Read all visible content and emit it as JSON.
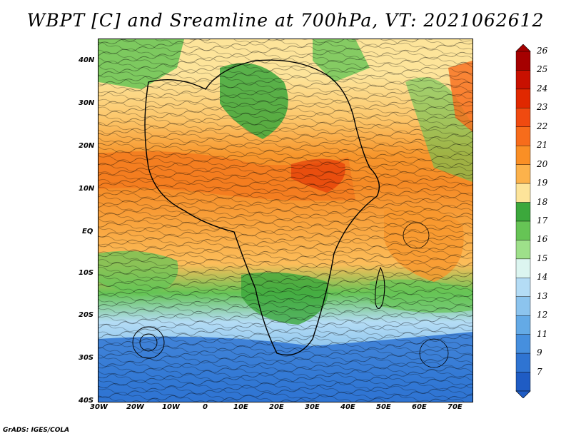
{
  "title": "WBPT [C] and Sreamline at 700hPa, VT: 2021062612",
  "footer": "GrADS: IGES/COLA",
  "map": {
    "lon_labels": [
      "30W",
      "20W",
      "10W",
      "0",
      "10E",
      "20E",
      "30E",
      "40E",
      "50E",
      "60E",
      "70E"
    ],
    "lat_labels": [
      "40N",
      "30N",
      "20N",
      "10N",
      "EQ",
      "10S",
      "20S",
      "30S",
      "40S"
    ]
  },
  "colorbar": {
    "levels": [
      "26",
      "25",
      "24",
      "23",
      "22",
      "21",
      "20",
      "19",
      "18",
      "17",
      "16",
      "15",
      "14",
      "13",
      "12",
      "11",
      "9",
      "7"
    ],
    "colors": [
      "#a50000",
      "#c81000",
      "#e02800",
      "#f04a10",
      "#f76c1b",
      "#fa8f25",
      "#fcb24b",
      "#fde49a",
      "#3ca83c",
      "#66c455",
      "#9ee08a",
      "#dcf5f0",
      "#b4dcf5",
      "#8cc4ee",
      "#64aae6",
      "#468fde",
      "#2f74d2",
      "#1f5cc4"
    ]
  }
}
